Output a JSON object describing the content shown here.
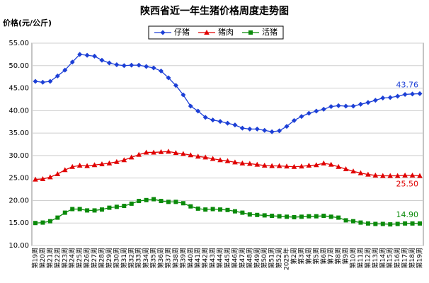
{
  "chart_data": {
    "type": "line",
    "title": "陕西省近一年生猪价格周度走势图",
    "y_label": "价格(元/公斤)",
    "categories": [
      "第19周",
      "第20周",
      "第21周",
      "第22周",
      "第23周",
      "第24周",
      "第25周",
      "第26周",
      "第27周",
      "第28周",
      "第29周",
      "第30周",
      "第31周",
      "第32周",
      "第33周",
      "第34周",
      "第35周",
      "第36周",
      "第37周",
      "第38周",
      "第39周",
      "第40周",
      "第41周",
      "第42周",
      "第43周",
      "第44周",
      "第45周",
      "第46周",
      "第47周",
      "第48周",
      "第49周",
      "第50周",
      "第51周",
      "第52周",
      "2025年",
      "第2周",
      "第3周",
      "第4周",
      "第5周",
      "第6周",
      "第7周",
      "第8周",
      "第9周",
      "第10周",
      "第11周",
      "第12周",
      "第13周",
      "第14周",
      "第15周",
      "第16周",
      "第17周",
      "第18周",
      "第19周"
    ],
    "series": [
      {
        "name": "仔猪",
        "color": "#1c3fd6",
        "marker": "diamond",
        "values": [
          46.5,
          46.3,
          46.5,
          47.7,
          49.0,
          50.8,
          52.5,
          52.3,
          52.1,
          51.2,
          50.6,
          50.2,
          50.0,
          50.1,
          50.1,
          49.8,
          49.5,
          48.8,
          47.3,
          45.6,
          43.5,
          41.0,
          39.9,
          38.5,
          37.9,
          37.6,
          37.2,
          36.8,
          36.1,
          35.9,
          35.9,
          35.6,
          35.3,
          35.5,
          36.5,
          37.8,
          38.7,
          39.4,
          39.9,
          40.3,
          40.9,
          41.1,
          41.0,
          41.0,
          41.4,
          41.8,
          42.3,
          42.8,
          42.9,
          43.2,
          43.6,
          43.7,
          43.76
        ],
        "value_labels": [
          null,
          null,
          null,
          null,
          null,
          null,
          null,
          null,
          null,
          null,
          null,
          null,
          null,
          null,
          null,
          null,
          null,
          null,
          null,
          null,
          null,
          null,
          null,
          null,
          null,
          null,
          null,
          null,
          null,
          null,
          null,
          null,
          null,
          null,
          null,
          null,
          null,
          null,
          null,
          null,
          null,
          null,
          null,
          null,
          null,
          null,
          null,
          null,
          null,
          null,
          null,
          null,
          "43.76"
        ]
      },
      {
        "name": "猪肉",
        "color": "#e00000",
        "marker": "triangle",
        "values": [
          24.7,
          24.8,
          25.2,
          25.9,
          26.8,
          27.5,
          27.8,
          27.7,
          27.9,
          28.1,
          28.3,
          28.6,
          29.0,
          29.6,
          30.2,
          30.7,
          30.7,
          30.8,
          30.9,
          30.6,
          30.4,
          30.1,
          29.8,
          29.6,
          29.3,
          29.0,
          28.8,
          28.5,
          28.3,
          28.2,
          28.0,
          27.8,
          27.7,
          27.7,
          27.6,
          27.5,
          27.6,
          27.8,
          27.9,
          28.3,
          28.0,
          27.5,
          27.0,
          26.5,
          26.1,
          25.8,
          25.6,
          25.5,
          25.5,
          25.5,
          25.6,
          25.6,
          25.5
        ],
        "value_labels": [
          null,
          null,
          null,
          null,
          null,
          null,
          null,
          null,
          null,
          null,
          null,
          null,
          null,
          null,
          null,
          null,
          null,
          null,
          null,
          null,
          null,
          null,
          null,
          null,
          null,
          null,
          null,
          null,
          null,
          null,
          null,
          null,
          null,
          null,
          null,
          null,
          null,
          null,
          null,
          null,
          null,
          null,
          null,
          null,
          null,
          null,
          null,
          null,
          null,
          null,
          null,
          null,
          "25.50"
        ]
      },
      {
        "name": "活猪",
        "color": "#0a8a0a",
        "marker": "square",
        "values": [
          15.0,
          15.1,
          15.4,
          16.2,
          17.3,
          18.1,
          18.1,
          17.8,
          17.8,
          18.0,
          18.4,
          18.6,
          18.8,
          19.3,
          19.9,
          20.1,
          20.3,
          19.9,
          19.7,
          19.7,
          19.4,
          18.7,
          18.2,
          18.0,
          18.1,
          18.0,
          17.9,
          17.6,
          17.3,
          16.9,
          16.8,
          16.7,
          16.6,
          16.5,
          16.4,
          16.3,
          16.4,
          16.5,
          16.5,
          16.6,
          16.4,
          16.2,
          15.6,
          15.4,
          15.1,
          14.9,
          14.8,
          14.8,
          14.7,
          14.8,
          14.9,
          14.9,
          14.9
        ],
        "value_labels": [
          null,
          null,
          null,
          null,
          null,
          null,
          null,
          null,
          null,
          null,
          null,
          null,
          null,
          null,
          null,
          null,
          null,
          null,
          null,
          null,
          null,
          null,
          null,
          null,
          null,
          null,
          null,
          null,
          null,
          null,
          null,
          null,
          null,
          null,
          null,
          null,
          null,
          null,
          null,
          null,
          null,
          null,
          null,
          null,
          null,
          null,
          null,
          null,
          null,
          null,
          null,
          null,
          "14.90"
        ]
      }
    ],
    "ylim": [
      10,
      55
    ],
    "yticks": [
      {
        "value": 10,
        "label": "10.00"
      },
      {
        "value": 15,
        "label": "15.00"
      },
      {
        "value": 20,
        "label": "20.00"
      },
      {
        "value": 25,
        "label": "25.00"
      },
      {
        "value": 30,
        "label": "30.00"
      },
      {
        "value": 35,
        "label": "35.00"
      },
      {
        "value": 40,
        "label": "40.00"
      },
      {
        "value": 45,
        "label": "45.00"
      },
      {
        "value": 50,
        "label": "50.00"
      },
      {
        "value": 55,
        "label": "55.00"
      }
    ],
    "grid": true,
    "legend": "top"
  }
}
